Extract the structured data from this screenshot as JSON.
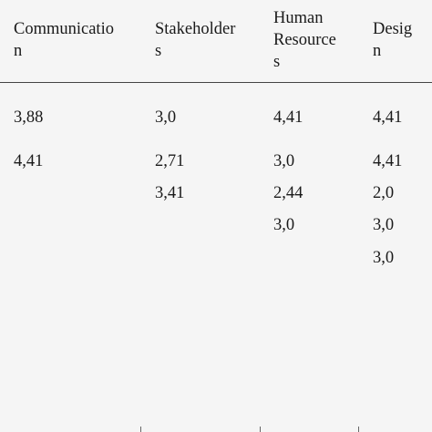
{
  "table": {
    "headers": [
      "Communicatio\nn",
      "Stakeholder\ns",
      "Human\nResource\ns",
      "Desig\nn"
    ],
    "rows": [
      [
        "3,88",
        "3,0",
        "4,41",
        "4,41"
      ],
      [
        "4,41",
        "2,71",
        "3,0",
        "4,41"
      ],
      [
        "",
        "3,41",
        "2,44",
        "2,0"
      ],
      [
        "",
        "",
        "3,0",
        "3,0"
      ],
      [
        "",
        "",
        "",
        "3,0"
      ]
    ]
  }
}
